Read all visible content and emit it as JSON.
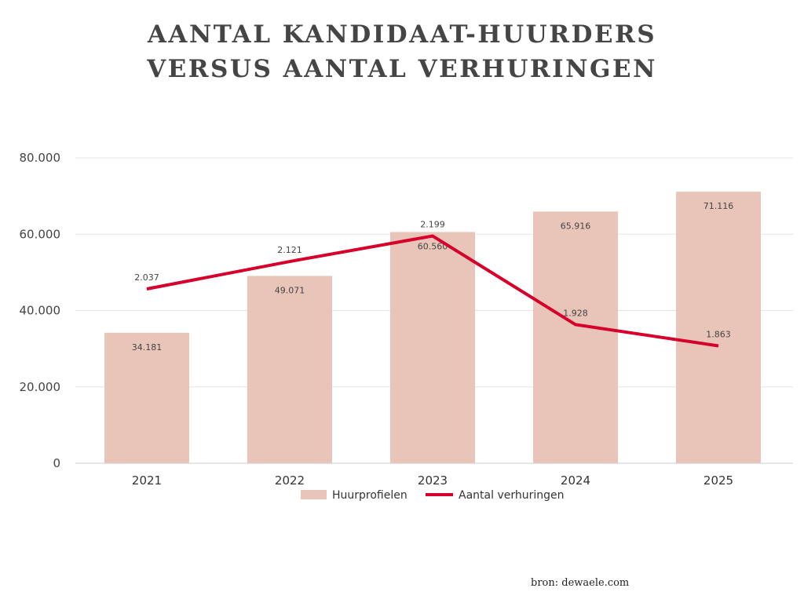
{
  "title_line1": "AANTAL KANDIDAAT-HUURDERS",
  "title_line2": "VERSUS AANTAL VERHURINGEN",
  "source": "bron: dewaele.com",
  "chart_data": {
    "type": "bar+line",
    "categories": [
      "2021",
      "2022",
      "2023",
      "2024",
      "2025"
    ],
    "series": [
      {
        "name": "Huurprofielen",
        "type": "bar",
        "axis": "primary",
        "color": "#e8c5b8",
        "values": [
          34181,
          49071,
          60560,
          65916,
          71116
        ]
      },
      {
        "name": "Aantal verhuringen",
        "type": "line",
        "axis": "secondary (hidden)",
        "color": "#d6002b",
        "values": [
          2037,
          2121,
          2199,
          1928,
          1863
        ]
      }
    ],
    "ylim": [
      0,
      80000
    ],
    "yticks": [
      "0",
      "20.000",
      "40.000",
      "60.000",
      "80.000"
    ],
    "y2lim": [
      1504,
      2438
    ],
    "grid": true,
    "legend": "bottom",
    "number_format": "dot thousands separator"
  }
}
